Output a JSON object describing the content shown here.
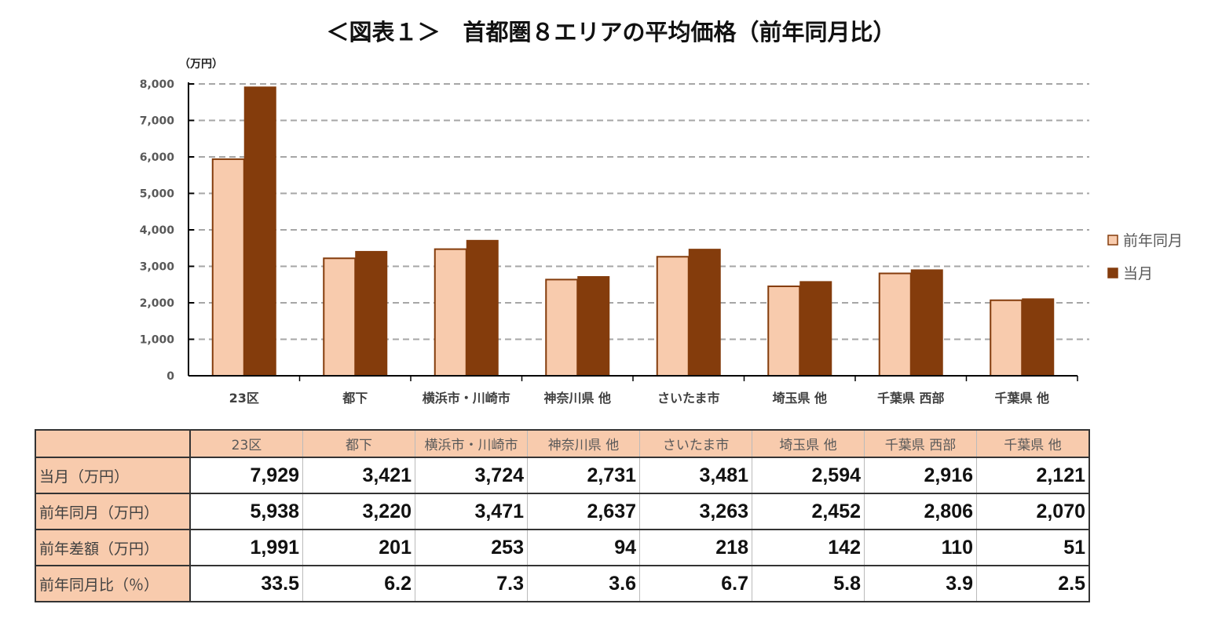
{
  "title": "＜図表１＞　首都圏８エリアの平均価格（前年同月比）",
  "chart_data": {
    "type": "bar",
    "title": "＜図表１＞　首都圏８エリアの平均価格（前年同月比）",
    "ylabel": "（万円）",
    "ylim": [
      0,
      8000
    ],
    "yticks": [
      0,
      1000,
      2000,
      3000,
      4000,
      5000,
      6000,
      7000,
      8000
    ],
    "ytick_labels": [
      "0",
      "1,000",
      "2,000",
      "3,000",
      "4,000",
      "5,000",
      "6,000",
      "7,000",
      "8,000"
    ],
    "grid": true,
    "legend_position": "right",
    "categories": [
      "23区",
      "都下",
      "横浜市・川崎市",
      "神奈川県 他",
      "さいたま市",
      "埼玉県 他",
      "千葉県 西部",
      "千葉県 他"
    ],
    "series": [
      {
        "name": "前年同月",
        "color": "#F8CBAD",
        "values": [
          5938,
          3220,
          3471,
          2637,
          3263,
          2452,
          2806,
          2070
        ]
      },
      {
        "name": "当月",
        "color": "#843C0C",
        "values": [
          7929,
          3421,
          3724,
          2731,
          3481,
          2594,
          2916,
          2121
        ]
      }
    ]
  },
  "table": {
    "columns": [
      "23区",
      "都下",
      "横浜市・川崎市",
      "神奈川県 他",
      "さいたま市",
      "埼玉県 他",
      "千葉県 西部",
      "千葉県 他"
    ],
    "rows": [
      {
        "label": "当月（万円）",
        "values": [
          "7,929",
          "3,421",
          "3,724",
          "2,731",
          "3,481",
          "2,594",
          "2,916",
          "2,121"
        ]
      },
      {
        "label": "前年同月（万円）",
        "values": [
          "5,938",
          "3,220",
          "3,471",
          "2,637",
          "3,263",
          "2,452",
          "2,806",
          "2,070"
        ]
      },
      {
        "label": "前年差額（万円）",
        "values": [
          "1,991",
          "201",
          "253",
          "94",
          "218",
          "142",
          "110",
          "51"
        ]
      },
      {
        "label": "前年同月比（％）",
        "values": [
          "33.5",
          "6.2",
          "7.3",
          "3.6",
          "6.7",
          "5.8",
          "3.9",
          "2.5"
        ]
      }
    ]
  }
}
